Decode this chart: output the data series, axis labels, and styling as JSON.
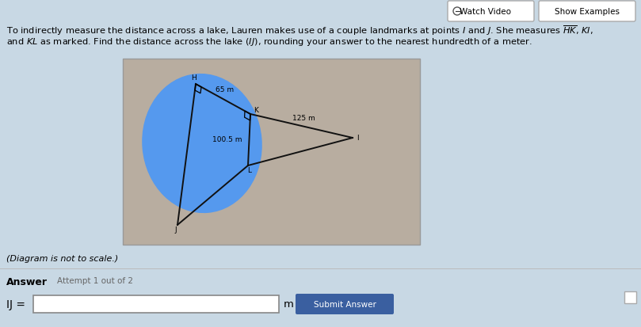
{
  "diagram_note": "(Diagram is not to scale.)",
  "answer_label": "Answer",
  "attempt_label": "Attempt 1 out of 2",
  "ij_label": "IJ =",
  "unit_label": "m",
  "submit_label": "Submit Answer",
  "watch_video": "Watch Video",
  "show_examples": "Show Examples",
  "HK_label": "65 m",
  "KI_label": "125 m",
  "KL_label": "100.5 m",
  "diagram_bg": "#b8ada0",
  "lake_color": "#5599ee",
  "line_color": "#111111",
  "input_bg": "#ffffff",
  "submit_bg": "#3a5fa0",
  "submit_fg": "#ffffff",
  "page_bg": "#c8d8e4",
  "btn_bg": "#ffffff",
  "btn_border": "#aaaaaa"
}
